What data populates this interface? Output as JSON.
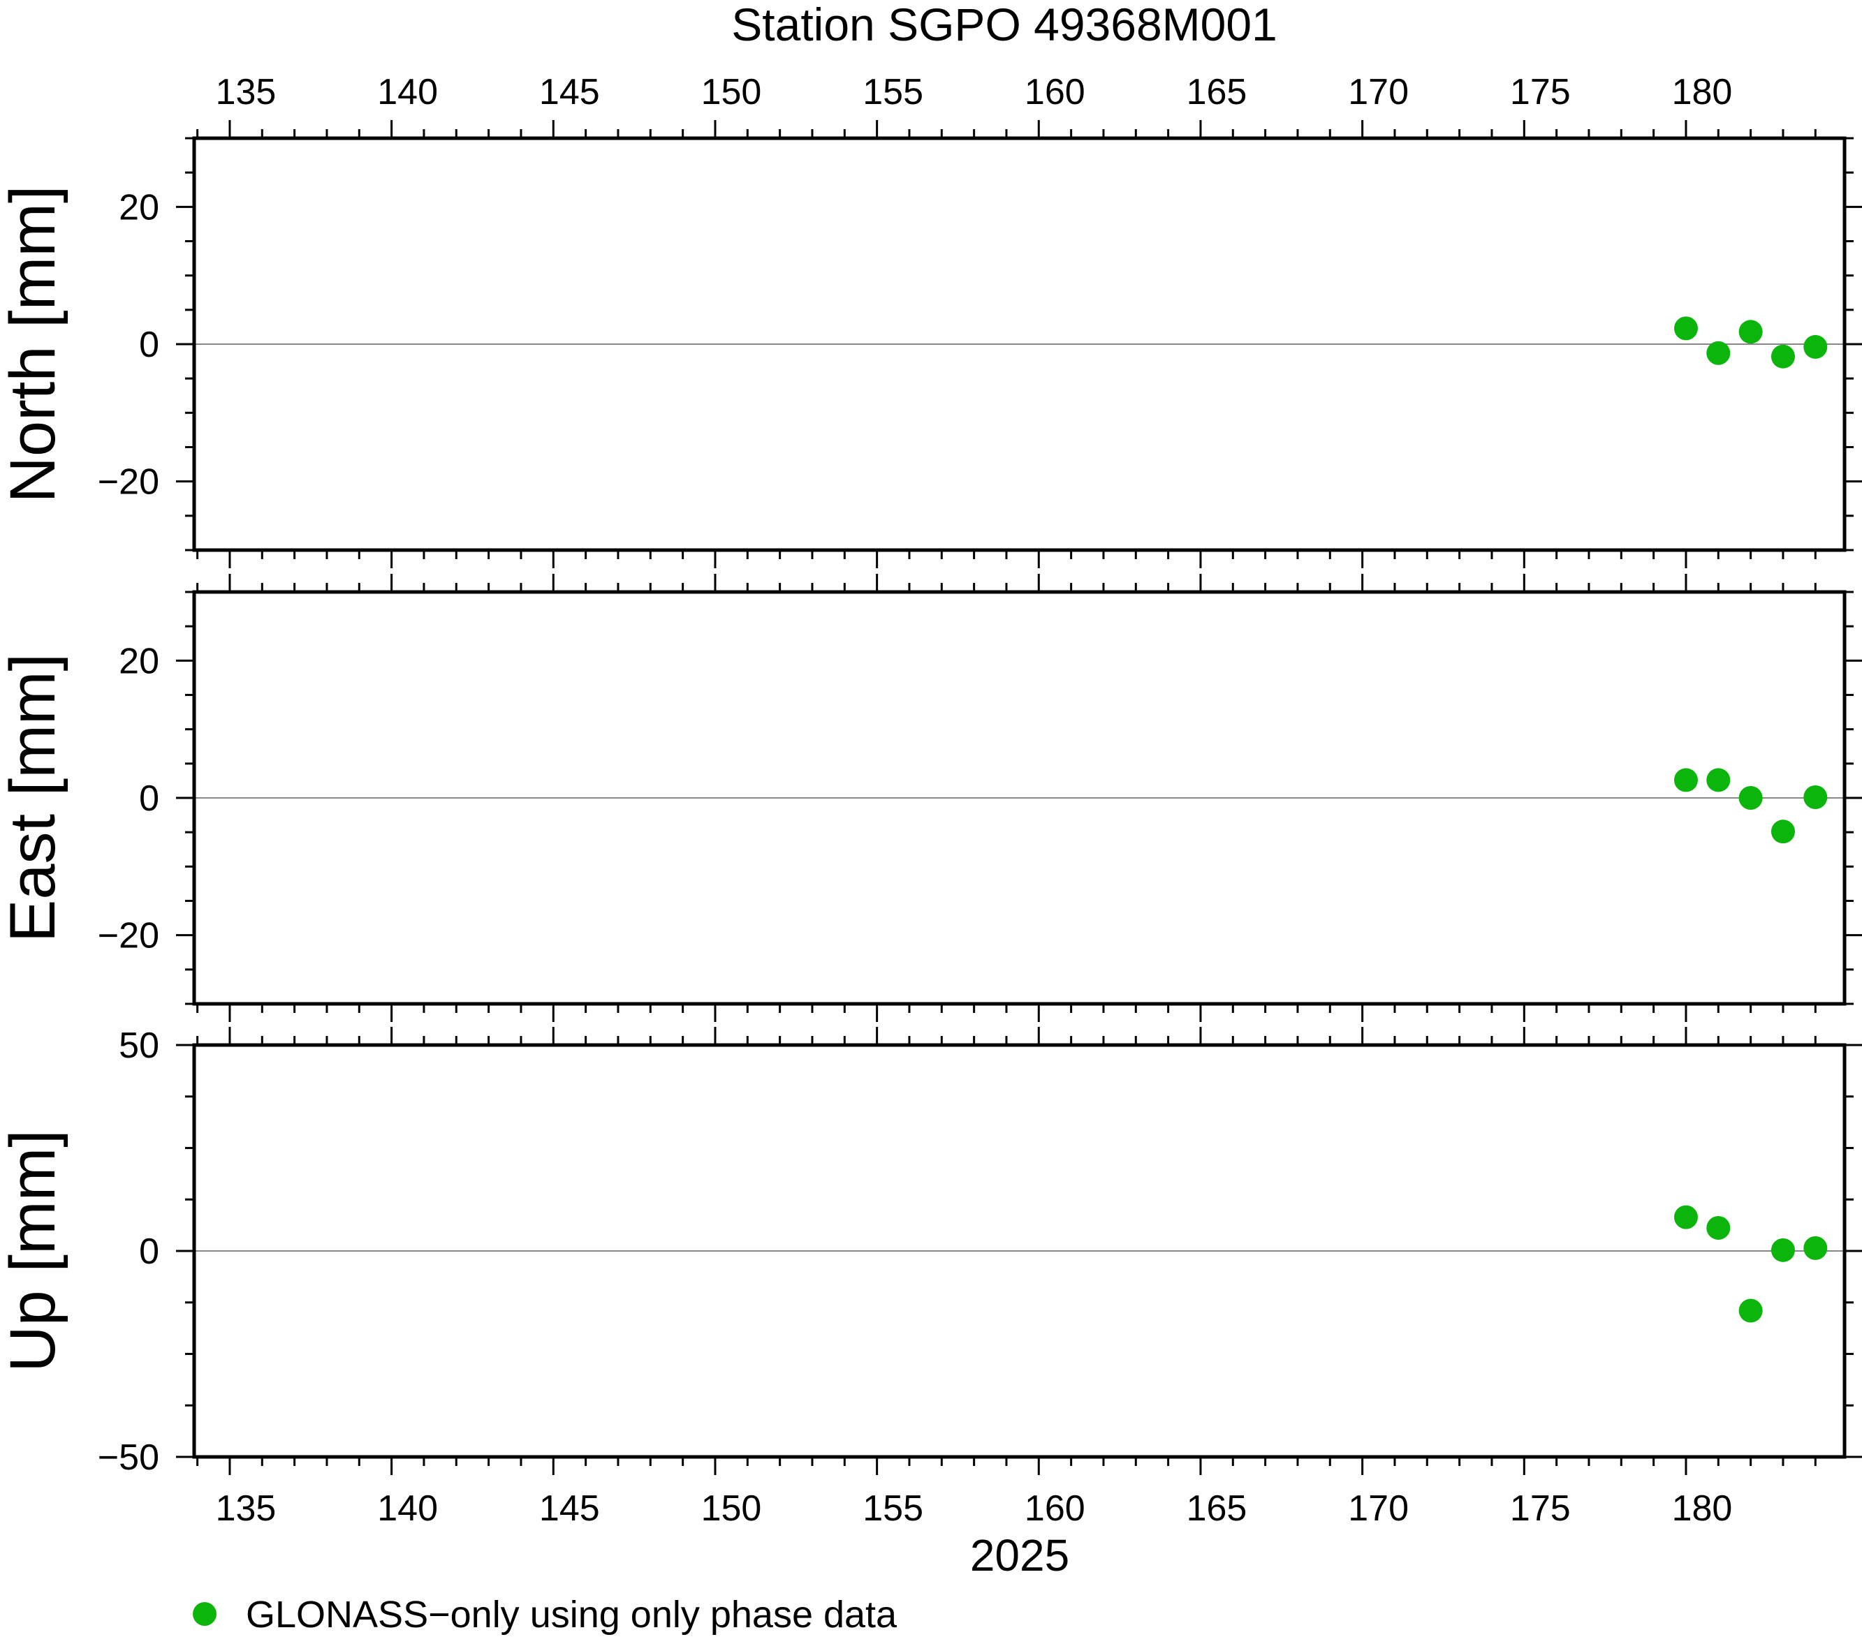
{
  "chart_data": [
    {
      "type": "scatter",
      "panel": "north",
      "title": "Station SGPO 49368M001",
      "ylabel": "North [mm]",
      "xlim": [
        133.9,
        184.9
      ],
      "ylim": [
        -30,
        30
      ],
      "yticks": [
        20,
        0,
        -20
      ],
      "ytick_labels": [
        "20",
        "0",
        "−20"
      ],
      "zero_line": true,
      "series": [
        {
          "name": "GLONASS−only using only phase data",
          "color": "#0bb50b",
          "x": [
            180,
            181,
            182,
            183,
            184
          ],
          "y": [
            2.3,
            -1.3,
            1.8,
            -1.8,
            -0.4
          ]
        }
      ]
    },
    {
      "type": "scatter",
      "panel": "east",
      "ylabel": "East [mm]",
      "xlim": [
        133.9,
        184.9
      ],
      "ylim": [
        -30,
        30
      ],
      "yticks": [
        20,
        0,
        -20
      ],
      "ytick_labels": [
        "20",
        "0",
        "−20"
      ],
      "zero_line": true,
      "series": [
        {
          "name": "GLONASS−only using only phase data",
          "color": "#0bb50b",
          "x": [
            180,
            181,
            182,
            183,
            184
          ],
          "y": [
            2.6,
            2.6,
            0.0,
            -4.9,
            0.1
          ]
        }
      ]
    },
    {
      "type": "scatter",
      "panel": "up",
      "ylabel": "Up [mm]",
      "xlabel": "2025",
      "xlim": [
        133.9,
        184.9
      ],
      "ylim": [
        -50,
        50
      ],
      "yticks": [
        50,
        0,
        -50
      ],
      "ytick_labels": [
        "50",
        "0",
        "−50"
      ],
      "zero_line": true,
      "series": [
        {
          "name": "GLONASS−only using only phase data",
          "color": "#0bb50b",
          "x": [
            180,
            181,
            182,
            183,
            184
          ],
          "y": [
            8.2,
            5.6,
            -14.5,
            0.2,
            0.7
          ]
        }
      ]
    }
  ],
  "x_axis": {
    "ticks": [
      135,
      140,
      145,
      150,
      155,
      160,
      165,
      170,
      175,
      180
    ],
    "tick_labels": [
      "135",
      "140",
      "145",
      "150",
      "155",
      "160",
      "165",
      "170",
      "175",
      "180"
    ]
  },
  "legend": {
    "label": "GLONASS−only using only phase data",
    "color": "#0bb50b",
    "position": "bottom-left"
  }
}
